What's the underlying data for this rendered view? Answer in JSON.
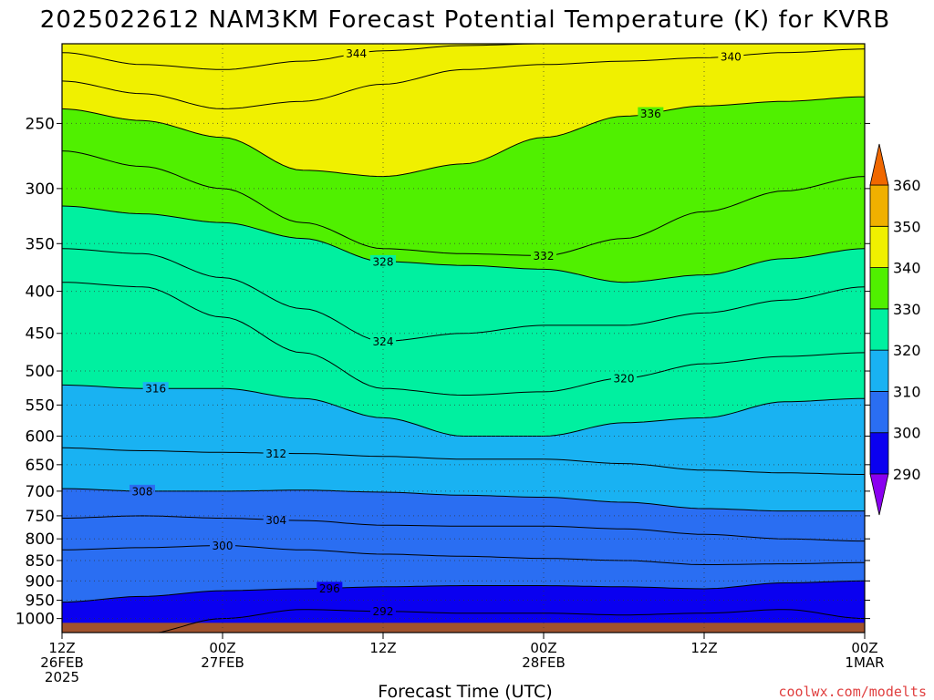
{
  "title": "2025022612 NAM3KM Forecast Potential Temperature (K) for KVRB",
  "credit": "coolwx.com/modelts",
  "chart_data": {
    "type": "contour",
    "title": "2025022612 NAM3KM Forecast Potential Temperature (K) for KVRB",
    "xlabel": "Forecast Time (UTC)",
    "ylabel": "",
    "x_range": [
      "2025-02-26 12Z",
      "2025-03-01 00Z"
    ],
    "x_ticks": [
      {
        "hours": 0,
        "lines": [
          "12Z",
          "26FEB",
          "2025"
        ]
      },
      {
        "hours": 12,
        "lines": [
          "00Z",
          "27FEB"
        ]
      },
      {
        "hours": 24,
        "lines": [
          "12Z"
        ]
      },
      {
        "hours": 36,
        "lines": [
          "00Z",
          "28FEB"
        ]
      },
      {
        "hours": 48,
        "lines": [
          "12Z"
        ]
      },
      {
        "hours": 60,
        "lines": [
          "00Z",
          "1MAR"
        ]
      }
    ],
    "y_scale": "log",
    "y_range": [
      1040,
      200
    ],
    "y_ticks": [
      250,
      300,
      350,
      400,
      450,
      500,
      550,
      600,
      650,
      700,
      750,
      800,
      850,
      900,
      950,
      1000
    ],
    "colorbar": {
      "levels": [
        290,
        300,
        310,
        320,
        330,
        340,
        350,
        360
      ],
      "colors": [
        "#0a00f0",
        "#2a6ef2",
        "#19b2f2",
        "#00f0a0",
        "#50f000",
        "#f0f000",
        "#f0b000"
      ],
      "under_color": "#8a00f0",
      "over_color": "#f06800"
    },
    "ground_color": "#a0522d",
    "contour_interval": 4,
    "hours": [
      0,
      6,
      12,
      18,
      24,
      30,
      36,
      42,
      48,
      54,
      60
    ],
    "isentropes": [
      {
        "theta": 292,
        "p": [
          1045,
          1045,
          1000,
          975,
          980,
          985,
          985,
          990,
          985,
          975,
          1000
        ],
        "label_at": 24
      },
      {
        "theta": 296,
        "p": [
          955,
          940,
          925,
          920,
          915,
          912,
          912,
          915,
          920,
          905,
          900
        ],
        "label_at": 20
      },
      {
        "theta": 300,
        "p": [
          825,
          820,
          815,
          825,
          835,
          840,
          845,
          850,
          860,
          858,
          855
        ],
        "label_at": 12
      },
      {
        "theta": 304,
        "p": [
          755,
          750,
          755,
          760,
          770,
          772,
          772,
          778,
          790,
          800,
          805
        ],
        "label_at": 16
      },
      {
        "theta": 308,
        "p": [
          695,
          700,
          700,
          698,
          702,
          708,
          712,
          722,
          735,
          740,
          740
        ],
        "label_at": 6
      },
      {
        "theta": 312,
        "p": [
          620,
          625,
          628,
          630,
          635,
          640,
          640,
          648,
          660,
          665,
          668
        ],
        "label_at": 16
      },
      {
        "theta": 316,
        "p": [
          520,
          525,
          525,
          540,
          570,
          600,
          600,
          578,
          570,
          545,
          540
        ],
        "label_at": 7
      },
      {
        "theta": 320,
        "p": [
          390,
          395,
          430,
          475,
          525,
          535,
          530,
          510,
          490,
          480,
          475
        ],
        "label_at": 42
      },
      {
        "theta": 324,
        "p": [
          355,
          360,
          385,
          420,
          460,
          450,
          440,
          440,
          425,
          410,
          395
        ],
        "label_at": 24
      },
      {
        "theta": 328,
        "p": [
          315,
          322,
          330,
          345,
          368,
          372,
          376,
          390,
          382,
          365,
          355
        ],
        "label_at": 24
      },
      {
        "theta": 332,
        "p": [
          270,
          282,
          300,
          330,
          355,
          360,
          362,
          345,
          320,
          302,
          290
        ],
        "label_at": 36
      },
      {
        "theta": 336,
        "p": [
          240,
          248,
          260,
          285,
          290,
          280,
          260,
          245,
          238,
          235,
          232
        ],
        "label_at": 44
      },
      {
        "theta": 340,
        "p": [
          222,
          230,
          240,
          235,
          224,
          215,
          212,
          210,
          208,
          205,
          203
        ],
        "label_at": 50
      },
      {
        "theta": 344,
        "p": [
          205,
          212,
          215,
          210,
          204,
          201,
          200,
          200,
          199,
          198,
          197
        ],
        "label_at": 22
      }
    ]
  }
}
